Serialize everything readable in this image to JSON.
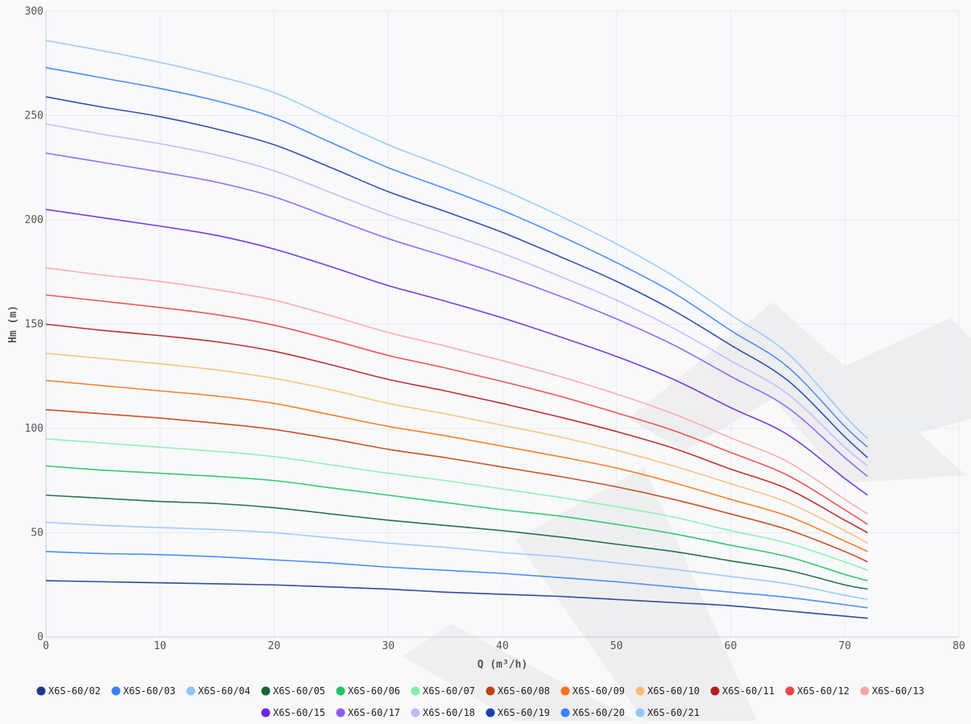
{
  "chart_data": {
    "type": "line",
    "title": "",
    "xlabel": "Q (m³/h)",
    "ylabel": "Hm (m)",
    "xlim": [
      0,
      80
    ],
    "ylim": [
      0,
      300
    ],
    "xticks": [
      0,
      10,
      20,
      30,
      40,
      50,
      60,
      70,
      80
    ],
    "yticks": [
      0,
      50,
      100,
      150,
      200,
      250,
      300
    ],
    "grid": true,
    "legend_position": "bottom",
    "x": [
      0,
      5,
      10,
      15,
      20,
      25,
      30,
      35,
      40,
      45,
      50,
      55,
      60,
      65,
      70,
      72
    ],
    "series": [
      {
        "name": "X6S-60/02",
        "color": "#1e3a8a",
        "values": [
          27,
          26.5,
          26,
          25.5,
          25,
          24,
          23,
          21.5,
          20.5,
          19.5,
          18,
          16.5,
          15,
          12.5,
          10,
          9
        ]
      },
      {
        "name": "X6S-60/03",
        "color": "#3b82f6",
        "values": [
          41,
          40,
          39.5,
          38.5,
          37,
          35.5,
          33.5,
          32,
          30.5,
          28.5,
          26.5,
          24,
          21.5,
          19,
          15.5,
          14
        ]
      },
      {
        "name": "X6S-60/04",
        "color": "#93c5fd",
        "values": [
          55,
          53.5,
          52.5,
          51.5,
          50,
          47.5,
          45,
          43,
          40.5,
          38.5,
          35.5,
          32.5,
          29,
          25.5,
          20,
          18
        ]
      },
      {
        "name": "X6S-60/05",
        "color": "#166534",
        "values": [
          68,
          66.5,
          65,
          64,
          62,
          59,
          56,
          53.5,
          51,
          48,
          44.5,
          41,
          36.5,
          32,
          25,
          23
        ]
      },
      {
        "name": "X6S-60/06",
        "color": "#22c55e",
        "values": [
          82,
          80,
          78.5,
          77,
          75,
          71.5,
          68,
          64.5,
          61,
          58,
          54,
          49.5,
          44,
          38.5,
          30,
          27
        ]
      },
      {
        "name": "X6S-60/07",
        "color": "#86efac",
        "values": [
          95,
          93,
          91,
          89,
          86.5,
          82.5,
          78.5,
          75,
          71,
          67,
          62.5,
          57.5,
          51,
          45,
          36,
          32
        ]
      },
      {
        "name": "X6S-60/08",
        "color": "#c2410c",
        "values": [
          109,
          107,
          105,
          102.5,
          99.5,
          95,
          90,
          86,
          81.5,
          77,
          72,
          66,
          59,
          51.5,
          41,
          36
        ]
      },
      {
        "name": "X6S-60/09",
        "color": "#f97316",
        "values": [
          123,
          120.5,
          118,
          115.5,
          112,
          106.5,
          101,
          96.5,
          91.5,
          86.5,
          81,
          74,
          66,
          58,
          46,
          41
        ]
      },
      {
        "name": "X6S-60/10",
        "color": "#fdba74",
        "values": [
          136,
          133.5,
          131,
          128,
          124,
          118.5,
          112,
          107,
          101.5,
          96,
          89.5,
          82,
          73.5,
          64.5,
          51,
          45
        ]
      },
      {
        "name": "X6S-60/11",
        "color": "#b91c1c",
        "values": [
          150,
          147,
          144.5,
          141.5,
          137,
          130.5,
          123.5,
          118,
          112,
          105.5,
          98.5,
          90.5,
          80.5,
          71,
          56,
          50
        ]
      },
      {
        "name": "X6S-60/12",
        "color": "#ef4444",
        "values": [
          164,
          161,
          158,
          154.5,
          149.5,
          142.5,
          135,
          129,
          122.5,
          115.5,
          107.5,
          99,
          88.5,
          77.5,
          61,
          54
        ]
      },
      {
        "name": "X6S-60/13",
        "color": "#fca5a5",
        "values": [
          177,
          173.5,
          170.5,
          166.5,
          161.5,
          154,
          146,
          139.5,
          132.5,
          125,
          116.5,
          107,
          95.5,
          84,
          66,
          59
        ]
      },
      {
        "name": "X6S-60/15",
        "color": "#6d28d9",
        "values": [
          205,
          201,
          197,
          192.5,
          186,
          177.5,
          168.5,
          161,
          153,
          144,
          134.5,
          123.5,
          110,
          97,
          76,
          68
        ]
      },
      {
        "name": "X6S-60/17",
        "color": "#8b5cf6",
        "values": [
          232,
          227.5,
          223,
          218,
          211,
          201,
          191,
          182.5,
          173.5,
          163.5,
          152.5,
          140,
          125,
          110,
          86,
          77
        ]
      },
      {
        "name": "X6S-60/18",
        "color": "#c4b5fd",
        "values": [
          246,
          241,
          236.5,
          231,
          223.5,
          213,
          202.5,
          193.5,
          184,
          173,
          161.5,
          148,
          132.5,
          116.5,
          91,
          82
        ]
      },
      {
        "name": "X6S-60/19",
        "color": "#1e40af",
        "values": [
          259,
          254,
          249.5,
          243.5,
          236,
          225,
          213.5,
          204,
          194,
          182.5,
          170.5,
          156.5,
          140,
          123,
          96,
          86
        ]
      },
      {
        "name": "X6S-60/20",
        "color": "#3b82f6",
        "values": [
          273,
          268,
          263,
          257,
          249,
          237,
          225,
          215,
          204.5,
          192.5,
          179.5,
          165,
          147,
          129.5,
          101,
          91
        ]
      },
      {
        "name": "X6S-60/21",
        "color": "#93c5fd",
        "values": [
          286,
          281,
          275.5,
          269,
          261,
          248.5,
          236,
          225.5,
          214.5,
          202,
          188.5,
          173,
          154.5,
          136,
          106,
          95
        ]
      }
    ]
  }
}
